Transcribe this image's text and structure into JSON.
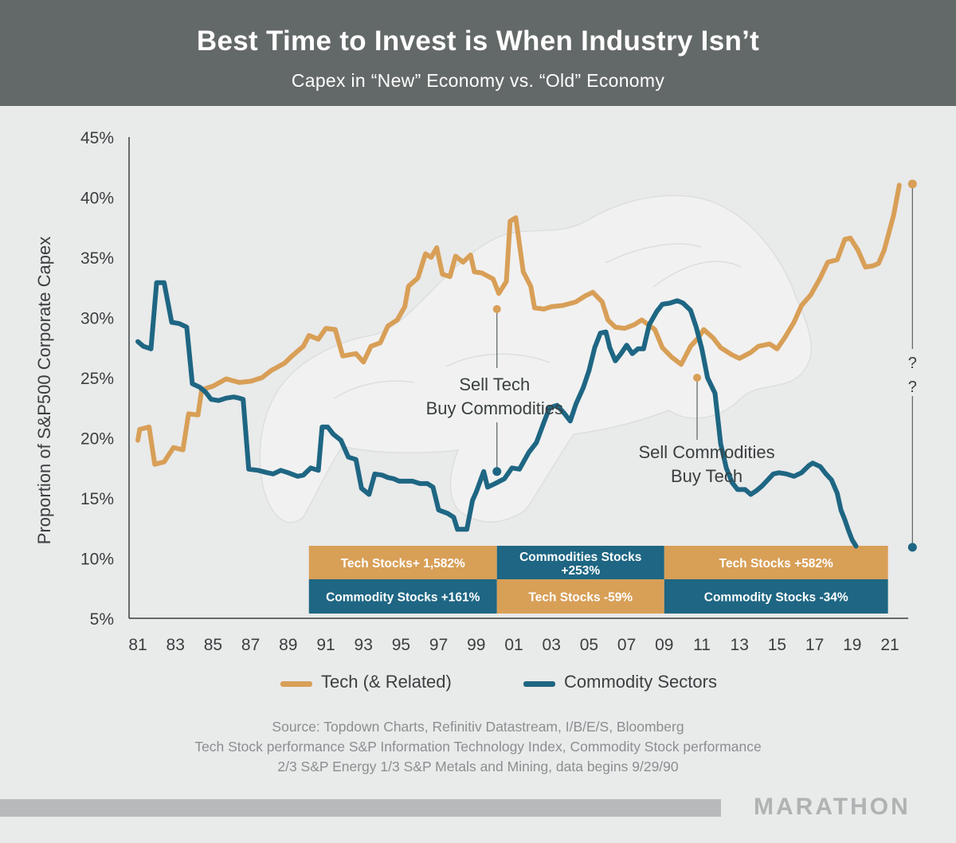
{
  "header": {
    "title": "Best Time to Invest is When Industry Isn’t",
    "subtitle": "Capex in “New” Economy vs. “Old” Economy"
  },
  "colors": {
    "tech": "#d89f57",
    "commodity": "#1e6683",
    "header_bg": "#636968",
    "background": "#e9eaea"
  },
  "chart_data": {
    "type": "line",
    "title": "Best Time to Invest is When Industry Isn’t",
    "subtitle": "Capex in “New” Economy vs. “Old” Economy",
    "ylabel": "Proportion of S&P500 Corporate Capex",
    "xlabel": "",
    "ylim": [
      5,
      45
    ],
    "xlim": [
      1980.5,
      2022.5
    ],
    "y_ticks": [
      5,
      10,
      15,
      20,
      25,
      30,
      35,
      40,
      45
    ],
    "y_tick_labels": [
      "5%",
      "10%",
      "15%",
      "20%",
      "25%",
      "30%",
      "35%",
      "40%",
      "45%"
    ],
    "x_ticks": [
      1981,
      1983,
      1985,
      1987,
      1989,
      1991,
      1993,
      1995,
      1997,
      1999,
      2001,
      2003,
      2005,
      2007,
      2009,
      2011,
      2013,
      2015,
      2017,
      2019,
      2021
    ],
    "x_tick_labels": [
      "81",
      "83",
      "85",
      "87",
      "89",
      "91",
      "93",
      "95",
      "97",
      "99",
      "01",
      "03",
      "05",
      "07",
      "09",
      "11",
      "13",
      "15",
      "17",
      "19",
      "21"
    ],
    "series": [
      {
        "name": "Tech (& Related)",
        "color": "#d89f57",
        "points": [
          [
            1981.0,
            19.8
          ],
          [
            1981.1,
            20.7
          ],
          [
            1981.6,
            20.9
          ],
          [
            1981.9,
            17.8
          ],
          [
            1982.4,
            18.0
          ],
          [
            1982.9,
            19.2
          ],
          [
            1983.4,
            19.0
          ],
          [
            1983.7,
            22.0
          ],
          [
            1984.2,
            21.9
          ],
          [
            1984.4,
            24.0
          ],
          [
            1985.0,
            24.3
          ],
          [
            1985.7,
            24.9
          ],
          [
            1986.4,
            24.6
          ],
          [
            1987.0,
            24.7
          ],
          [
            1987.6,
            25.0
          ],
          [
            1988.1,
            25.6
          ],
          [
            1988.8,
            26.2
          ],
          [
            1989.2,
            26.8
          ],
          [
            1989.8,
            27.6
          ],
          [
            1990.1,
            28.5
          ],
          [
            1990.6,
            28.2
          ],
          [
            1991.0,
            29.1
          ],
          [
            1991.5,
            29.0
          ],
          [
            1991.9,
            26.8
          ],
          [
            1992.6,
            27.0
          ],
          [
            1993.0,
            26.3
          ],
          [
            1993.4,
            27.6
          ],
          [
            1993.9,
            27.9
          ],
          [
            1994.3,
            29.3
          ],
          [
            1994.8,
            29.8
          ],
          [
            1995.2,
            30.9
          ],
          [
            1995.4,
            32.6
          ],
          [
            1995.9,
            33.3
          ],
          [
            1996.3,
            35.3
          ],
          [
            1996.6,
            35.0
          ],
          [
            1996.9,
            35.8
          ],
          [
            1997.2,
            33.6
          ],
          [
            1997.6,
            33.4
          ],
          [
            1997.9,
            35.1
          ],
          [
            1998.3,
            34.6
          ],
          [
            1998.7,
            35.2
          ],
          [
            1998.9,
            33.8
          ],
          [
            1999.3,
            33.7
          ],
          [
            1999.9,
            33.2
          ],
          [
            2000.2,
            32.0
          ],
          [
            2000.6,
            33.0
          ],
          [
            2000.8,
            38.0
          ],
          [
            2001.1,
            38.3
          ],
          [
            2001.5,
            33.8
          ],
          [
            2001.9,
            32.6
          ],
          [
            2002.1,
            30.8
          ],
          [
            2002.6,
            30.7
          ],
          [
            2003.0,
            30.9
          ],
          [
            2003.6,
            31.0
          ],
          [
            2004.3,
            31.3
          ],
          [
            2004.8,
            31.8
          ],
          [
            2005.2,
            32.1
          ],
          [
            2005.7,
            31.3
          ],
          [
            2006.0,
            29.8
          ],
          [
            2006.4,
            29.2
          ],
          [
            2006.9,
            29.1
          ],
          [
            2007.4,
            29.4
          ],
          [
            2007.8,
            29.8
          ],
          [
            2008.5,
            29.0
          ],
          [
            2008.9,
            27.5
          ],
          [
            2009.4,
            26.7
          ],
          [
            2009.9,
            26.1
          ],
          [
            2010.4,
            27.6
          ],
          [
            2010.8,
            28.3
          ],
          [
            2011.1,
            29.0
          ],
          [
            2011.6,
            28.3
          ],
          [
            2012.0,
            27.5
          ],
          [
            2012.6,
            26.9
          ],
          [
            2013.0,
            26.6
          ],
          [
            2013.6,
            27.1
          ],
          [
            2014.0,
            27.6
          ],
          [
            2014.6,
            27.8
          ],
          [
            2015.0,
            27.4
          ],
          [
            2015.4,
            28.3
          ],
          [
            2015.9,
            29.6
          ],
          [
            2016.3,
            31.0
          ],
          [
            2016.8,
            31.9
          ],
          [
            2017.3,
            33.3
          ],
          [
            2017.7,
            34.6
          ],
          [
            2018.2,
            34.8
          ],
          [
            2018.6,
            36.5
          ],
          [
            2018.9,
            36.6
          ],
          [
            2019.3,
            35.6
          ],
          [
            2019.7,
            34.2
          ],
          [
            2020.1,
            34.3
          ],
          [
            2020.4,
            34.5
          ],
          [
            2020.7,
            35.6
          ],
          [
            2021.2,
            38.5
          ],
          [
            2021.5,
            41.0
          ]
        ],
        "marker": [
          2022.2,
          41.1
        ]
      },
      {
        "name": "Commodity Sectors",
        "color": "#1e6683",
        "points": [
          [
            1981.0,
            28.0
          ],
          [
            1981.3,
            27.6
          ],
          [
            1981.7,
            27.4
          ],
          [
            1982.0,
            32.9
          ],
          [
            1982.4,
            32.9
          ],
          [
            1982.8,
            29.6
          ],
          [
            1983.2,
            29.5
          ],
          [
            1983.6,
            29.2
          ],
          [
            1983.9,
            24.5
          ],
          [
            1984.3,
            24.2
          ],
          [
            1984.6,
            23.8
          ],
          [
            1984.9,
            23.2
          ],
          [
            1985.3,
            23.1
          ],
          [
            1985.7,
            23.3
          ],
          [
            1986.1,
            23.4
          ],
          [
            1986.4,
            23.3
          ],
          [
            1986.6,
            23.2
          ],
          [
            1986.9,
            17.4
          ],
          [
            1987.4,
            17.3
          ],
          [
            1987.9,
            17.1
          ],
          [
            1988.2,
            17.0
          ],
          [
            1988.6,
            17.3
          ],
          [
            1989.0,
            17.1
          ],
          [
            1989.5,
            16.8
          ],
          [
            1989.8,
            16.9
          ],
          [
            1990.2,
            17.5
          ],
          [
            1990.6,
            17.3
          ],
          [
            1990.8,
            20.9
          ],
          [
            1991.1,
            20.9
          ],
          [
            1991.4,
            20.3
          ],
          [
            1991.8,
            19.8
          ],
          [
            1992.2,
            18.4
          ],
          [
            1992.6,
            18.2
          ],
          [
            1992.9,
            15.8
          ],
          [
            1993.3,
            15.3
          ],
          [
            1993.6,
            17.0
          ],
          [
            1994.0,
            16.9
          ],
          [
            1994.3,
            16.7
          ],
          [
            1994.6,
            16.6
          ],
          [
            1994.9,
            16.4
          ],
          [
            1995.2,
            16.4
          ],
          [
            1995.6,
            16.4
          ],
          [
            1996.0,
            16.2
          ],
          [
            1996.4,
            16.2
          ],
          [
            1996.7,
            15.9
          ],
          [
            1997.0,
            14.0
          ],
          [
            1997.5,
            13.7
          ],
          [
            1997.8,
            13.4
          ],
          [
            1998.0,
            12.4
          ],
          [
            1998.5,
            12.4
          ],
          [
            1998.8,
            14.8
          ],
          [
            1999.0,
            15.5
          ],
          [
            1999.4,
            17.2
          ],
          [
            1999.6,
            15.9
          ],
          [
            2000.0,
            16.2
          ],
          [
            2000.5,
            16.6
          ],
          [
            2000.9,
            17.5
          ],
          [
            2001.3,
            17.4
          ],
          [
            2001.8,
            18.8
          ],
          [
            2002.2,
            19.6
          ],
          [
            2002.6,
            21.3
          ],
          [
            2002.9,
            22.5
          ],
          [
            2003.3,
            22.7
          ],
          [
            2003.7,
            22.0
          ],
          [
            2004.0,
            21.4
          ],
          [
            2004.3,
            22.8
          ],
          [
            2004.7,
            24.2
          ],
          [
            2005.0,
            25.6
          ],
          [
            2005.3,
            27.5
          ],
          [
            2005.6,
            28.7
          ],
          [
            2005.9,
            28.8
          ],
          [
            2006.1,
            27.5
          ],
          [
            2006.4,
            26.4
          ],
          [
            2006.7,
            27.0
          ],
          [
            2007.0,
            27.7
          ],
          [
            2007.3,
            27.0
          ],
          [
            2007.6,
            27.4
          ],
          [
            2007.9,
            27.4
          ],
          [
            2008.2,
            29.4
          ],
          [
            2008.6,
            30.5
          ],
          [
            2008.9,
            31.1
          ],
          [
            2009.3,
            31.2
          ],
          [
            2009.7,
            31.4
          ],
          [
            2010.0,
            31.2
          ],
          [
            2010.4,
            30.6
          ],
          [
            2010.7,
            29.2
          ],
          [
            2011.0,
            27.4
          ],
          [
            2011.3,
            25.0
          ],
          [
            2011.7,
            23.7
          ],
          [
            2012.0,
            19.5
          ],
          [
            2012.3,
            17.5
          ],
          [
            2012.6,
            16.3
          ],
          [
            2012.9,
            15.7
          ],
          [
            2013.3,
            15.7
          ],
          [
            2013.6,
            15.3
          ],
          [
            2013.9,
            15.6
          ],
          [
            2014.2,
            16.0
          ],
          [
            2014.5,
            16.5
          ],
          [
            2014.8,
            17.0
          ],
          [
            2015.1,
            17.1
          ],
          [
            2015.5,
            17.0
          ],
          [
            2015.9,
            16.8
          ],
          [
            2016.3,
            17.1
          ],
          [
            2016.7,
            17.7
          ],
          [
            2016.9,
            17.9
          ],
          [
            2017.3,
            17.6
          ],
          [
            2017.6,
            17.0
          ],
          [
            2017.9,
            16.5
          ],
          [
            2018.2,
            15.4
          ],
          [
            2018.4,
            14.0
          ],
          [
            2018.6,
            13.2
          ],
          [
            2018.8,
            12.3
          ],
          [
            2019.0,
            11.5
          ],
          [
            2019.2,
            11.0
          ]
        ],
        "marker": [
          2022.2,
          10.9
        ]
      }
    ],
    "annotations": [
      {
        "lines": [
          "Sell Tech",
          "Buy Commodities"
        ],
        "marker_top": [
          2000.1,
          30.7
        ],
        "marker_bottom": [
          2000.1,
          17.2
        ]
      },
      {
        "lines": [
          "Sell Commodities",
          "Buy Tech"
        ],
        "marker_top": [
          2009.9,
          25.0
        ]
      },
      {
        "lines": [
          "?",
          "?"
        ]
      }
    ],
    "performance_table": [
      [
        {
          "text": "Tech Stocks+ 1,582%",
          "color": "#d89f57"
        },
        {
          "text": "Commodities Stocks +253%",
          "color": "#1e6683"
        },
        {
          "text": "Tech Stocks +582%",
          "color": "#d89f57"
        }
      ],
      [
        {
          "text": "Commodity Stocks +161%",
          "color": "#1e6683"
        },
        {
          "text": "Tech Stocks -59%",
          "color": "#d89f57"
        },
        {
          "text": "Commodity Stocks -34%",
          "color": "#1e6683"
        }
      ]
    ]
  },
  "legend": {
    "tech_label": "Tech (& Related)",
    "commodity_label": "Commodity Sectors"
  },
  "source": {
    "line1": "Source: Topdown Charts, Refinitiv Datastream, I/B/E/S, Bloomberg",
    "line2": "Tech Stock performance S&P Information Technology Index, Commodity Stock performance",
    "line3": "2/3 S&P Energy 1/3 S&P Metals and Mining, data begins 9/29/90"
  },
  "footer": {
    "brand": "MARATHON"
  }
}
